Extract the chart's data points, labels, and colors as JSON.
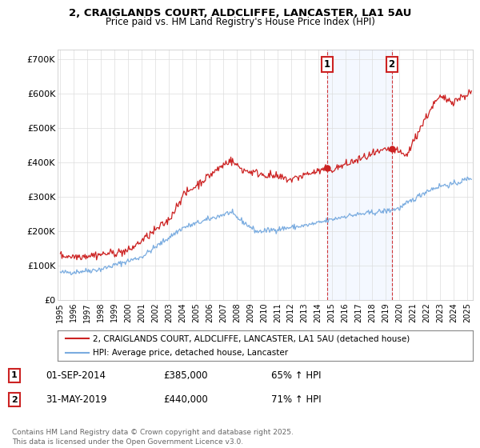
{
  "title1": "2, CRAIGLANDS COURT, ALDCLIFFE, LANCASTER, LA1 5AU",
  "title2": "Price paid vs. HM Land Registry's House Price Index (HPI)",
  "yticks": [
    0,
    100000,
    200000,
    300000,
    400000,
    500000,
    600000,
    700000
  ],
  "ytick_labels": [
    "£0",
    "£100K",
    "£200K",
    "£300K",
    "£400K",
    "£500K",
    "£600K",
    "£700K"
  ],
  "xlim_start": 1994.8,
  "xlim_end": 2025.4,
  "ylim": [
    0,
    730000
  ],
  "bg_color": "#ffffff",
  "red_line_color": "#cc2222",
  "blue_line_color": "#7aace0",
  "vline_color": "#cc2222",
  "vline1_x": 2014.67,
  "vline2_x": 2019.42,
  "legend_line1": "2, CRAIGLANDS COURT, ALDCLIFFE, LANCASTER, LA1 5AU (detached house)",
  "legend_line2": "HPI: Average price, detached house, Lancaster",
  "table_rows": [
    [
      "1",
      "01-SEP-2014",
      "£385,000",
      "65% ↑ HPI"
    ],
    [
      "2",
      "31-MAY-2019",
      "£440,000",
      "71% ↑ HPI"
    ]
  ],
  "footer": "Contains HM Land Registry data © Crown copyright and database right 2025.\nThis data is licensed under the Open Government Licence v3.0.",
  "xticks": [
    1995,
    1996,
    1997,
    1998,
    1999,
    2000,
    2001,
    2002,
    2003,
    2004,
    2005,
    2006,
    2007,
    2008,
    2009,
    2010,
    2011,
    2012,
    2013,
    2014,
    2015,
    2016,
    2017,
    2018,
    2019,
    2020,
    2021,
    2022,
    2023,
    2024,
    2025
  ]
}
